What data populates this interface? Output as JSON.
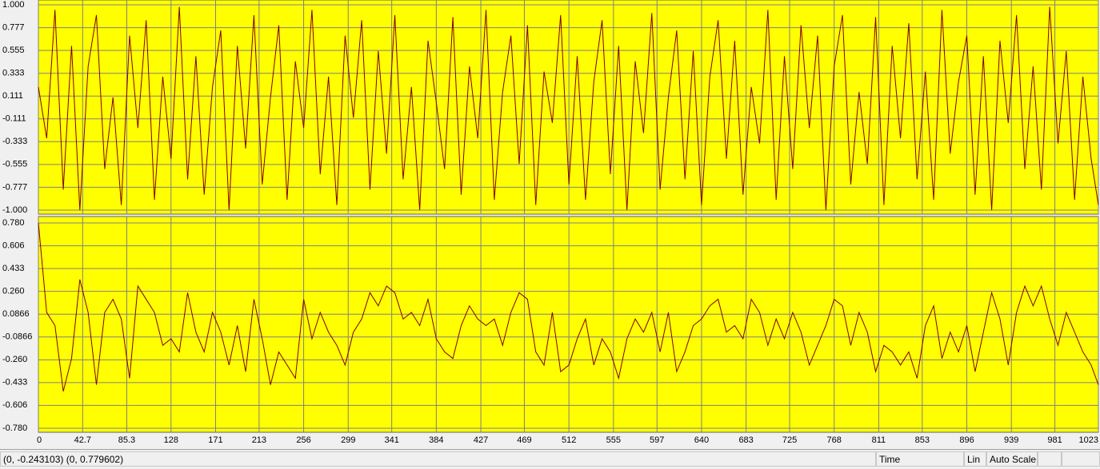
{
  "chart_data": [
    {
      "type": "line",
      "x": [
        0,
        8,
        16,
        24,
        32,
        40,
        48,
        56,
        64,
        72,
        80,
        88,
        96,
        104,
        112,
        120,
        128,
        136,
        144,
        152,
        160,
        168,
        176,
        184,
        192,
        200,
        208,
        216,
        224,
        232,
        240,
        248,
        256,
        264,
        272,
        280,
        288,
        296,
        304,
        312,
        320,
        328,
        336,
        344,
        352,
        360,
        368,
        376,
        384,
        392,
        400,
        408,
        416,
        424,
        432,
        440,
        448,
        456,
        464,
        472,
        480,
        488,
        496,
        504,
        512,
        520,
        528,
        536,
        544,
        552,
        560,
        568,
        576,
        584,
        592,
        600,
        608,
        616,
        624,
        632,
        640,
        648,
        656,
        664,
        672,
        680,
        688,
        696,
        704,
        712,
        720,
        728,
        736,
        744,
        752,
        760,
        768,
        776,
        784,
        792,
        800,
        808,
        816,
        824,
        832,
        840,
        848,
        856,
        864,
        872,
        880,
        888,
        896,
        904,
        912,
        920,
        928,
        936,
        944,
        952,
        960,
        968,
        976,
        984,
        992,
        1000,
        1008,
        1016,
        1023
      ],
      "series": [
        {
          "color": "#800000",
          "values": [
            0.2,
            -0.3,
            0.95,
            -0.8,
            0.6,
            -1.0,
            0.4,
            0.9,
            -0.6,
            0.1,
            -0.95,
            0.7,
            -0.2,
            0.85,
            -0.9,
            0.3,
            -0.5,
            0.98,
            -0.7,
            0.5,
            -0.85,
            0.2,
            0.75,
            -1.0,
            0.6,
            -0.4,
            0.9,
            -0.75,
            0.1,
            0.8,
            -0.9,
            0.45,
            -0.2,
            0.95,
            -0.65,
            0.3,
            -0.95,
            0.7,
            -0.1,
            0.85,
            -0.8,
            0.55,
            -0.45,
            0.9,
            -0.7,
            0.2,
            -1.0,
            0.65,
            0.05,
            -0.6,
            0.88,
            -0.85,
            0.4,
            -0.3,
            0.95,
            -0.9,
            0.15,
            0.7,
            -0.55,
            0.8,
            -0.95,
            0.35,
            -0.15,
            0.9,
            -0.75,
            0.5,
            -0.9,
            0.25,
            0.85,
            -0.65,
            0.6,
            -1.0,
            0.45,
            -0.25,
            0.92,
            -0.8,
            0.1,
            0.75,
            -0.7,
            0.55,
            -0.95,
            0.3,
            0.85,
            -0.5,
            0.65,
            -0.85,
            0.2,
            -0.35,
            0.95,
            -0.9,
            0.5,
            -0.6,
            0.8,
            -0.2,
            0.7,
            -1.0,
            0.4,
            0.9,
            -0.75,
            0.15,
            -0.55,
            0.88,
            -0.95,
            0.6,
            -0.3,
            0.82,
            -0.7,
            0.35,
            -0.9,
            0.95,
            -0.45,
            0.25,
            0.7,
            -0.85,
            0.5,
            -1.0,
            0.65,
            -0.15,
            0.9,
            -0.6,
            0.4,
            -0.8,
            0.98,
            -0.35,
            0.55,
            -0.9,
            0.3,
            -0.5,
            -0.95
          ]
        }
      ],
      "xlim": [
        0,
        1023
      ],
      "ylim": [
        -1,
        1
      ],
      "yticks": [
        {
          "value": 1,
          "label": "1.000"
        },
        0.777,
        0.555,
        0.333,
        0.111,
        -0.111,
        -0.333,
        -0.555,
        -0.777,
        {
          "value": -1,
          "label": "-1.000"
        }
      ],
      "grid": true,
      "background": "#ffff00"
    },
    {
      "type": "line",
      "x": [
        0,
        8,
        16,
        24,
        32,
        40,
        48,
        56,
        64,
        72,
        80,
        88,
        96,
        104,
        112,
        120,
        128,
        136,
        144,
        152,
        160,
        168,
        176,
        184,
        192,
        200,
        208,
        216,
        224,
        232,
        240,
        248,
        256,
        264,
        272,
        280,
        288,
        296,
        304,
        312,
        320,
        328,
        336,
        344,
        352,
        360,
        368,
        376,
        384,
        392,
        400,
        408,
        416,
        424,
        432,
        440,
        448,
        456,
        464,
        472,
        480,
        488,
        496,
        504,
        512,
        520,
        528,
        536,
        544,
        552,
        560,
        568,
        576,
        584,
        592,
        600,
        608,
        616,
        624,
        632,
        640,
        648,
        656,
        664,
        672,
        680,
        688,
        696,
        704,
        712,
        720,
        728,
        736,
        744,
        752,
        760,
        768,
        776,
        784,
        792,
        800,
        808,
        816,
        824,
        832,
        840,
        848,
        856,
        864,
        872,
        880,
        888,
        896,
        904,
        912,
        920,
        928,
        936,
        944,
        952,
        960,
        968,
        976,
        984,
        992,
        1000,
        1008,
        1016,
        1023
      ],
      "series": [
        {
          "color": "#800000",
          "values": [
            0.78,
            0.1,
            0.0,
            -0.5,
            -0.25,
            0.35,
            0.1,
            -0.45,
            0.1,
            0.2,
            0.05,
            -0.4,
            0.3,
            0.2,
            0.1,
            -0.15,
            -0.1,
            -0.2,
            0.25,
            -0.05,
            -0.2,
            0.1,
            -0.05,
            -0.3,
            0.0,
            -0.35,
            0.2,
            -0.1,
            -0.45,
            -0.2,
            -0.3,
            -0.4,
            0.2,
            -0.1,
            0.1,
            -0.05,
            -0.15,
            -0.3,
            -0.05,
            0.05,
            0.25,
            0.15,
            0.3,
            0.25,
            0.05,
            0.1,
            0.0,
            0.2,
            -0.1,
            -0.2,
            -0.25,
            0.0,
            0.15,
            0.05,
            0.0,
            0.05,
            -0.15,
            0.1,
            0.25,
            0.2,
            -0.2,
            -0.3,
            0.1,
            -0.35,
            -0.3,
            -0.1,
            0.05,
            -0.3,
            -0.1,
            -0.2,
            -0.4,
            -0.1,
            0.05,
            -0.05,
            0.1,
            -0.2,
            0.1,
            -0.35,
            -0.2,
            0.0,
            0.05,
            0.15,
            0.2,
            -0.05,
            0.0,
            -0.1,
            0.2,
            0.1,
            -0.15,
            0.05,
            -0.1,
            0.1,
            -0.05,
            -0.3,
            -0.15,
            0.0,
            0.2,
            0.15,
            -0.15,
            0.1,
            -0.05,
            -0.35,
            -0.15,
            -0.2,
            -0.3,
            -0.2,
            -0.4,
            0.0,
            0.15,
            -0.25,
            -0.05,
            -0.2,
            0.0,
            -0.35,
            -0.05,
            0.25,
            0.05,
            -0.3,
            0.1,
            0.3,
            0.15,
            0.3,
            0.05,
            -0.15,
            0.1,
            -0.05,
            -0.2,
            -0.3,
            -0.45
          ]
        }
      ],
      "xlim": [
        0,
        1023
      ],
      "xticks": [
        0,
        42.7,
        85.3,
        128,
        171,
        213,
        256,
        299,
        341,
        384,
        427,
        469,
        512,
        555,
        597,
        640,
        683,
        725,
        768,
        811,
        853,
        896,
        939,
        981,
        1023
      ],
      "ylim": [
        -0.78,
        0.78
      ],
      "yticks": [
        {
          "value": 0.78,
          "label": "0.780"
        },
        0.606,
        0.433,
        {
          "value": 0.26,
          "label": "0.260"
        },
        0.0866,
        -0.0866,
        {
          "value": -0.26,
          "label": "-0.260"
        },
        -0.433,
        -0.606,
        {
          "value": -0.78,
          "label": "-0.780"
        }
      ],
      "grid": true,
      "background": "#ffff00"
    }
  ],
  "status_bar": {
    "cursor": "(0, -0.243103) (0, 0.779602)",
    "x_mode": "Time",
    "scale_type": "Lin",
    "scale_mode": "Auto Scale"
  }
}
